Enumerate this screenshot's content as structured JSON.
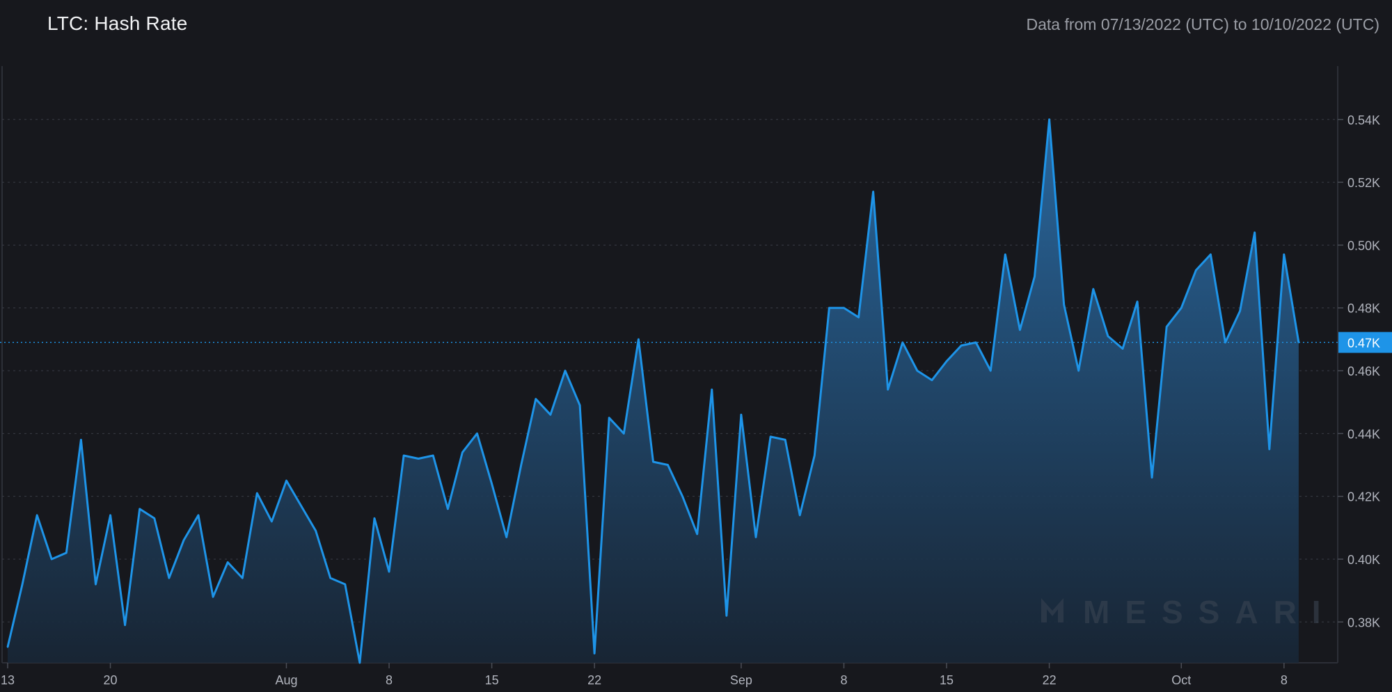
{
  "header": {
    "title": "LTC: Hash Rate",
    "date_range": "Data from 07/13/2022 (UTC) to 10/10/2022 (UTC)"
  },
  "watermark": "MESSARI",
  "colors": {
    "background": "#17181d",
    "line": "#1e94e8",
    "fill_top": "#2a6ba4",
    "fill_bottom": "#182636",
    "grid": "#3a3d46",
    "axis_text": "#b2b5be",
    "current_badge": "#1e94e8"
  },
  "chart_data": {
    "type": "area",
    "title": "LTC: Hash Rate",
    "xlabel": "",
    "ylabel": "",
    "grid": true,
    "y_axis_position": "right",
    "ylim": [
      367,
      557
    ],
    "y_ticks": [
      {
        "value": 380,
        "label": "0.38K"
      },
      {
        "value": 400,
        "label": "0.40K"
      },
      {
        "value": 420,
        "label": "0.42K"
      },
      {
        "value": 440,
        "label": "0.44K"
      },
      {
        "value": 460,
        "label": "0.46K"
      },
      {
        "value": 480,
        "label": "0.48K"
      },
      {
        "value": 500,
        "label": "0.50K"
      },
      {
        "value": 520,
        "label": "0.52K"
      },
      {
        "value": 540,
        "label": "0.54K"
      }
    ],
    "current_value": {
      "value": 469,
      "label": "0.47K"
    },
    "x_start": "2022-07-13",
    "x_end": "2022-10-10",
    "x_ticks": [
      {
        "date": "2022-07-13",
        "label": "13"
      },
      {
        "date": "2022-07-20",
        "label": "20"
      },
      {
        "date": "2022-08-01",
        "label": "Aug"
      },
      {
        "date": "2022-08-08",
        "label": "8"
      },
      {
        "date": "2022-08-15",
        "label": "15"
      },
      {
        "date": "2022-08-22",
        "label": "22"
      },
      {
        "date": "2022-09-01",
        "label": "Sep"
      },
      {
        "date": "2022-09-08",
        "label": "8"
      },
      {
        "date": "2022-09-15",
        "label": "15"
      },
      {
        "date": "2022-09-22",
        "label": "22"
      },
      {
        "date": "2022-10-01",
        "label": "Oct"
      },
      {
        "date": "2022-10-08",
        "label": "8"
      }
    ],
    "series": [
      {
        "name": "",
        "x": [
          "2022-07-13",
          "2022-07-14",
          "2022-07-15",
          "2022-07-16",
          "2022-07-17",
          "2022-07-18",
          "2022-07-19",
          "2022-07-20",
          "2022-07-21",
          "2022-07-22",
          "2022-07-23",
          "2022-07-24",
          "2022-07-25",
          "2022-07-26",
          "2022-07-27",
          "2022-07-28",
          "2022-07-29",
          "2022-07-30",
          "2022-07-31",
          "2022-08-01",
          "2022-08-02",
          "2022-08-03",
          "2022-08-04",
          "2022-08-05",
          "2022-08-06",
          "2022-08-07",
          "2022-08-08",
          "2022-08-09",
          "2022-08-10",
          "2022-08-11",
          "2022-08-12",
          "2022-08-13",
          "2022-08-14",
          "2022-08-15",
          "2022-08-16",
          "2022-08-17",
          "2022-08-18",
          "2022-08-19",
          "2022-08-20",
          "2022-08-21",
          "2022-08-22",
          "2022-08-23",
          "2022-08-24",
          "2022-08-25",
          "2022-08-26",
          "2022-08-27",
          "2022-08-28",
          "2022-08-29",
          "2022-08-30",
          "2022-08-31",
          "2022-09-01",
          "2022-09-02",
          "2022-09-03",
          "2022-09-04",
          "2022-09-05",
          "2022-09-06",
          "2022-09-07",
          "2022-09-08",
          "2022-09-09",
          "2022-09-10",
          "2022-09-11",
          "2022-09-12",
          "2022-09-13",
          "2022-09-14",
          "2022-09-15",
          "2022-09-16",
          "2022-09-17",
          "2022-09-18",
          "2022-09-19",
          "2022-09-20",
          "2022-09-21",
          "2022-09-22",
          "2022-09-23",
          "2022-09-24",
          "2022-09-25",
          "2022-09-26",
          "2022-09-27",
          "2022-09-28",
          "2022-09-29",
          "2022-09-30",
          "2022-10-01",
          "2022-10-02",
          "2022-10-03",
          "2022-10-04",
          "2022-10-05",
          "2022-10-06",
          "2022-10-07",
          "2022-10-08",
          "2022-10-09"
        ],
        "values": [
          372,
          392,
          414,
          400,
          402,
          438,
          392,
          414,
          379,
          416,
          413,
          394,
          406,
          414,
          388,
          399,
          394,
          421,
          412,
          425,
          417,
          409,
          394,
          392,
          367,
          413,
          396,
          433,
          432,
          433,
          416,
          434,
          440,
          424,
          407,
          430,
          451,
          446,
          460,
          449,
          370,
          445,
          440,
          470,
          431,
          430,
          420,
          408,
          454,
          382,
          446,
          407,
          439,
          438,
          414,
          433,
          480,
          480,
          477,
          517,
          454,
          469,
          460,
          457,
          463,
          468,
          469,
          460,
          497,
          473,
          490,
          540,
          481,
          460,
          486,
          471,
          467,
          482,
          426,
          474,
          480,
          492,
          497,
          469,
          479,
          504,
          435,
          497,
          469
        ]
      }
    ]
  }
}
